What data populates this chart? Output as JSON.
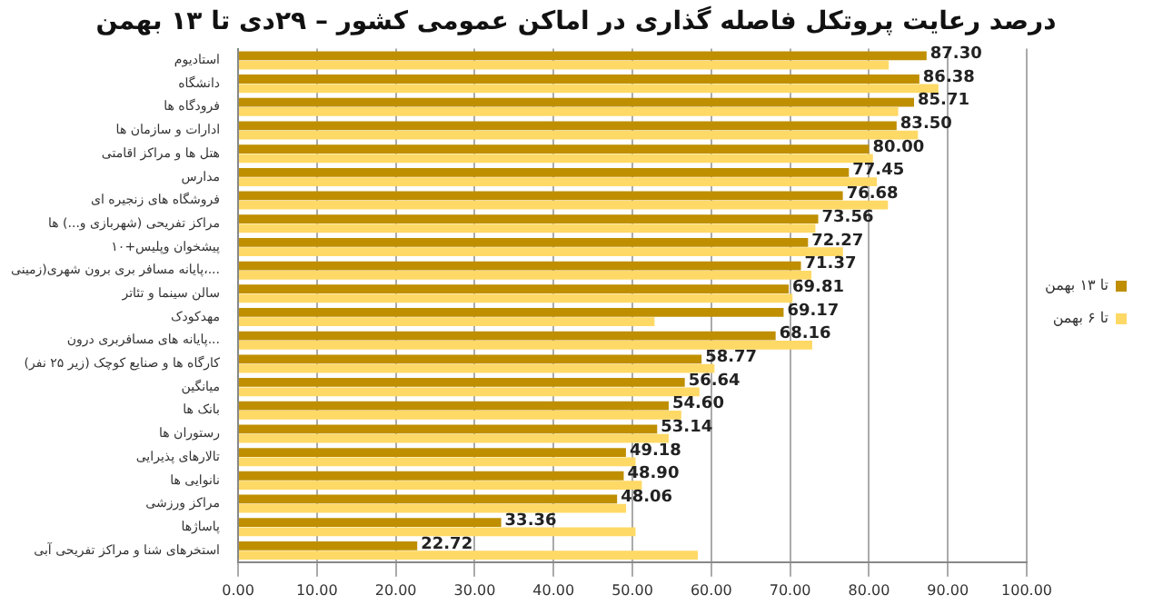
{
  "chart_data": {
    "type": "bar",
    "orientation": "horizontal",
    "title": "درصد رعایت پروتکل فاصله گذاری در اماکن عمومی کشور – ۲۹دی تا ۱۳ بهمن",
    "categories": [
      "استادیوم",
      "دانشگاه",
      "فرودگاه ها",
      "ادارات و سازمان ها",
      "هتل ها و مراکز اقامتی",
      "مدارس",
      "فروشگاه های زنجیره ای",
      "مراکز تفریحی (شهربازی و...) ها",
      "پیشخوان وپلیس+۱۰",
      "پایانه مسافر بری برون شهری(زمینی،...",
      "سالن سینما و تئاتر",
      "مهدکودک",
      "پایانه های مسافربری درون...",
      "کارگاه ها و صنایع کوچک (زیر ۲۵ نفر)",
      "میانگین",
      "بانک ها",
      "رستوران ها",
      "تالارهای پذیرایی",
      "نانوایی ها",
      "مراکز ورزشی",
      "پاساژها",
      "استخرهای شنا و مراکز تفریحی آبی"
    ],
    "series": [
      {
        "name": "تا ۱۳ بهمن",
        "color": "#bf8f00",
        "values": [
          87.3,
          86.38,
          85.71,
          83.5,
          80.0,
          77.45,
          76.68,
          73.56,
          72.27,
          71.37,
          69.81,
          69.17,
          68.16,
          58.77,
          56.64,
          54.6,
          53.14,
          49.18,
          48.9,
          48.06,
          33.36,
          22.72
        ],
        "value_labels": [
          "87.30",
          "86.38",
          "85.71",
          "83.50",
          "80.00",
          "77.45",
          "76.68",
          "73.56",
          "72.27",
          "71.37",
          "69.81",
          "69.17",
          "68.16",
          "58.77",
          "56.64",
          "54.60",
          "53.14",
          "49.18",
          "48.90",
          "48.06",
          "33.36",
          "22.72"
        ]
      },
      {
        "name": "تا ۶ بهمن",
        "color": "#ffd966",
        "values": [
          82.5,
          88.8,
          83.7,
          86.2,
          80.5,
          81.0,
          82.4,
          73.2,
          76.7,
          72.7,
          70.3,
          52.8,
          72.8,
          60.4,
          58.5,
          56.2,
          54.6,
          50.4,
          51.2,
          49.2,
          50.4,
          58.3
        ]
      }
    ],
    "xlim": [
      0,
      100
    ],
    "xticks": [
      {
        "value": 0,
        "label": "0.00"
      },
      {
        "value": 10,
        "label": "10.00"
      },
      {
        "value": 20,
        "label": "20.00"
      },
      {
        "value": 30,
        "label": "30.00"
      },
      {
        "value": 40,
        "label": "40.00"
      },
      {
        "value": 50,
        "label": "50.00"
      },
      {
        "value": 60,
        "label": "60.00"
      },
      {
        "value": 70,
        "label": "70.00"
      },
      {
        "value": 80,
        "label": "80.00"
      },
      {
        "value": 90,
        "label": "90.00"
      },
      {
        "value": 100,
        "label": "100.00"
      }
    ],
    "grid": "x",
    "legend": "right"
  }
}
